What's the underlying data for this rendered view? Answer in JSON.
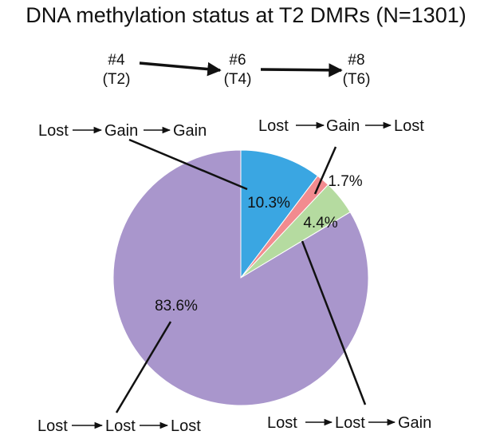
{
  "title": "DNA methylation status at T2 DMRs (N=1301)",
  "timeline": {
    "nodes": [
      {
        "id": "#4",
        "time": "(T2)"
      },
      {
        "id": "#6",
        "time": "(T4)"
      },
      {
        "id": "#8",
        "time": "(T6)"
      }
    ]
  },
  "chart_data": {
    "type": "pie",
    "title": "DNA methylation status at T2 DMRs (N=1301)",
    "slices": [
      {
        "category": "Lost→Gain→Gain",
        "parts": [
          "Lost",
          "Gain",
          "Gain"
        ],
        "value": 10.3,
        "label": "10.3%",
        "color": "#3aa6e2"
      },
      {
        "category": "Lost→Gain→Lost",
        "parts": [
          "Lost",
          "Gain",
          "Lost"
        ],
        "value": 1.7,
        "label": "1.7%",
        "color": "#f28b8f"
      },
      {
        "category": "Lost→Lost→Gain",
        "parts": [
          "Lost",
          "Lost",
          "Gain"
        ],
        "value": 4.4,
        "label": "4.4%",
        "color": "#b5dba0"
      },
      {
        "category": "Lost→Lost→Lost",
        "parts": [
          "Lost",
          "Lost",
          "Lost"
        ],
        "value": 83.6,
        "label": "83.6%",
        "color": "#a996cc"
      }
    ]
  }
}
